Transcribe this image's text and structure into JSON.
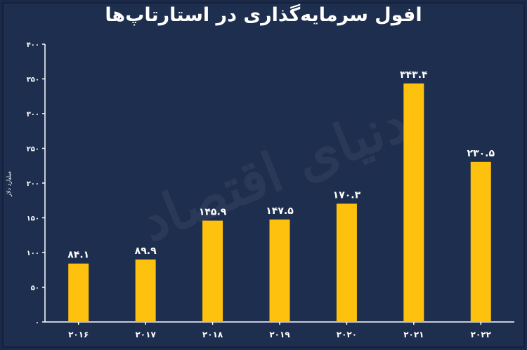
{
  "chart_data": {
    "type": "bar",
    "title": "افول سرمایه‌گذاری در استارتاپ‌ها",
    "ylabel": "میلیارد دلار",
    "xlabel": "",
    "categories": [
      "۲۰۱۶",
      "۲۰۱۷",
      "۲۰۱۸",
      "۲۰۱۹",
      "۲۰۲۰",
      "۲۰۲۱",
      "۲۰۲۲"
    ],
    "values": [
      84.1,
      89.9,
      145.9,
      147.5,
      170.3,
      343.4,
      230.5
    ],
    "value_labels": [
      "۸۴.۱",
      "۸۹.۹",
      "۱۴۵.۹",
      "۱۴۷.۵",
      "۱۷۰.۳",
      "۳۴۳.۴",
      "۲۳۰.۵"
    ],
    "yticks": [
      0,
      50,
      100,
      150,
      200,
      250,
      300,
      350,
      400
    ],
    "ytick_labels": [
      "۰",
      "۵۰",
      "۱۰۰",
      "۱۵۰",
      "۲۰۰",
      "۲۵۰",
      "۳۰۰",
      "۳۵۰",
      "۴۰۰"
    ],
    "ylim": [
      0,
      400
    ],
    "grid": false,
    "bar_color": "#fec10e",
    "background_color": "#1e2e4e",
    "watermark": "دنیای اقتصاد"
  }
}
